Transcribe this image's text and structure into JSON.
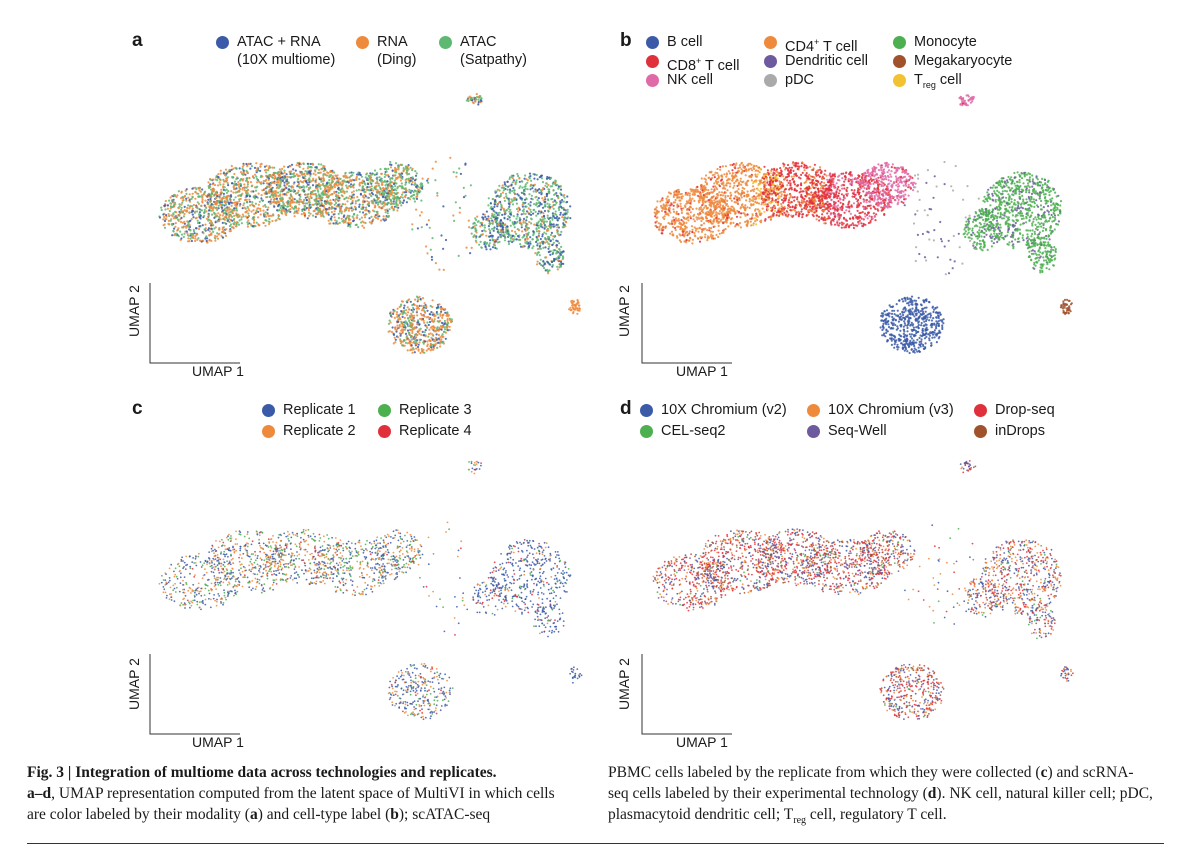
{
  "panels": [
    {
      "label": "a",
      "axis_x": "UMAP 1",
      "axis_y": "UMAP 2",
      "legend": [
        {
          "line1": "ATAC + RNA",
          "line2": "(10X multiome)",
          "color": "#3b5ba8"
        },
        {
          "line1": "RNA",
          "line2": "(Ding)",
          "color": "#ee8a3c"
        },
        {
          "line1": "ATAC",
          "line2": "(Satpathy)",
          "color": "#5db872"
        }
      ]
    },
    {
      "label": "b",
      "axis_x": "UMAP 1",
      "axis_y": "UMAP 2",
      "legend": [
        {
          "label": "B cell",
          "color": "#3b5ba8"
        },
        {
          "label": "CD4",
          "sup": "+",
          "suffix": " T cell",
          "color": "#ee8a3c"
        },
        {
          "label": "Monocyte",
          "color": "#4caf50"
        },
        {
          "label": "CD8",
          "sup": "+",
          "suffix": " T cell",
          "color": "#e0303c"
        },
        {
          "label": "Dendritic cell",
          "color": "#6e5a9e"
        },
        {
          "label": "Megakaryocyte",
          "color": "#a0522d"
        },
        {
          "label": "NK cell",
          "color": "#e06aa8"
        },
        {
          "label": "pDC",
          "color": "#aaaaaa"
        },
        {
          "label": "T",
          "sub": "reg",
          "suffix": " cell",
          "color": "#f2c230"
        }
      ]
    },
    {
      "label": "c",
      "axis_x": "UMAP 1",
      "axis_y": "UMAP 2",
      "legend": [
        {
          "label": "Replicate 1",
          "color": "#3b5ba8"
        },
        {
          "label": "Replicate 3",
          "color": "#4caf50"
        },
        {
          "label": "Replicate 2",
          "color": "#ee8a3c"
        },
        {
          "label": "Replicate 4",
          "color": "#e0303c"
        }
      ]
    },
    {
      "label": "d",
      "axis_x": "UMAP 1",
      "axis_y": "UMAP 2",
      "legend": [
        {
          "label": "10X Chromium (v2)",
          "color": "#3b5ba8"
        },
        {
          "label": "10X Chromium (v3)",
          "color": "#ee8a3c"
        },
        {
          "label": "Drop-seq",
          "color": "#e0303c"
        },
        {
          "label": "CEL-seq2",
          "color": "#4caf50"
        },
        {
          "label": "Seq-Well",
          "color": "#6e5a9e"
        },
        {
          "label": "inDrops",
          "color": "#a0522d"
        }
      ]
    }
  ],
  "caption": {
    "fig_label": "Fig. 3 | Integration of multiome data across technologies and replicates.",
    "left_p1": "a–d",
    "left_p2": ", UMAP representation computed from the latent space of MultiVI in which cells are color labeled by their modality (",
    "left_p3": "a",
    "left_p4": ") and cell-type label (",
    "left_p5": "b",
    "left_p6": "); scATAC-seq",
    "right_p1": "PBMC cells labeled by the replicate from which they were collected (",
    "right_p2": "c",
    "right_p3": ") and scRNA-seq cells labeled by their experimental technology (",
    "right_p4": "d",
    "right_p5": "). NK cell, natural killer cell; pDC, plasmacytoid dendritic cell; T",
    "right_p6": "reg",
    "right_p7": " cell, regulatory T cell."
  }
}
